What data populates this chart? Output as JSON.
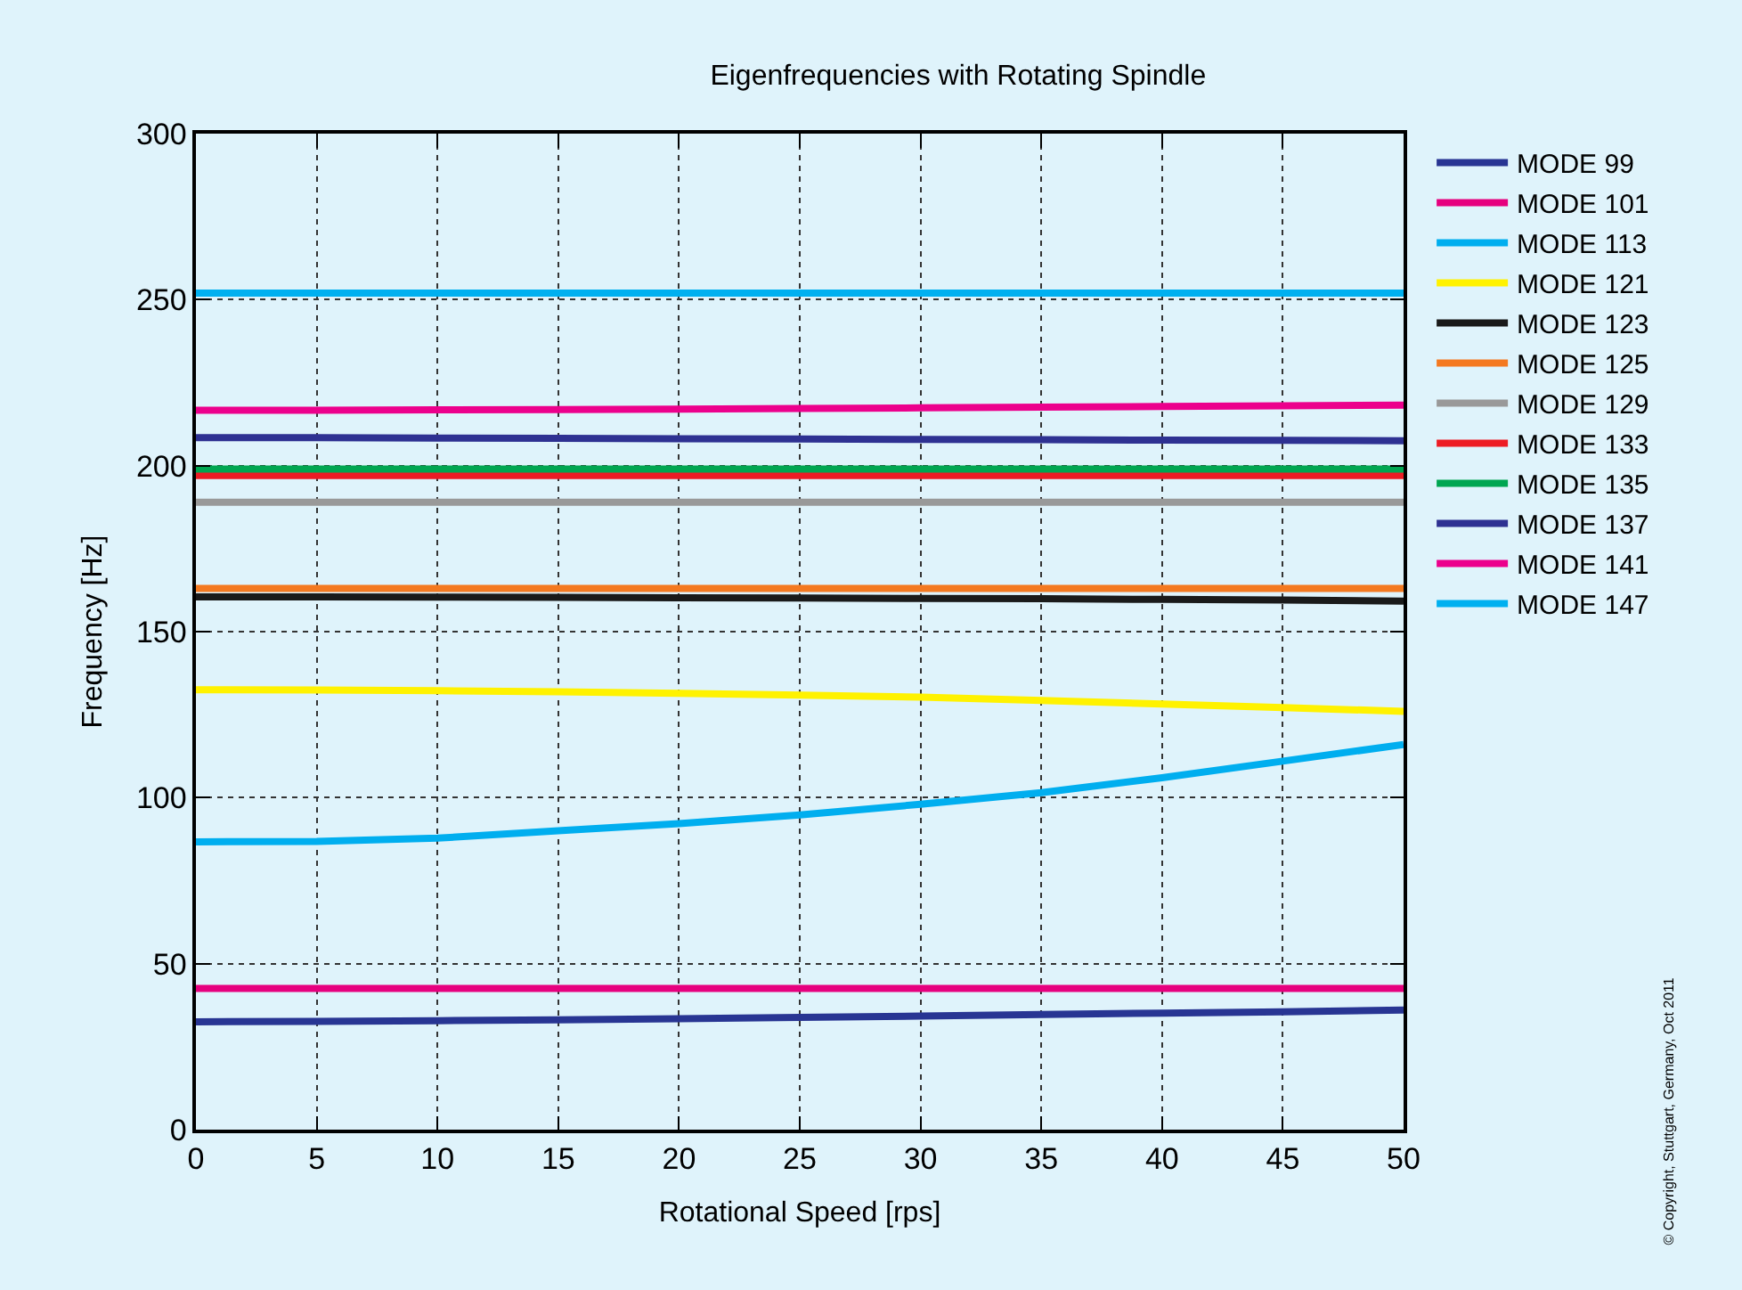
{
  "chart_data": {
    "type": "line",
    "title": "Eigenfrequencies with Rotating Spindle",
    "xlabel": "Rotational Speed [rps]",
    "ylabel": "Frequency [Hz]",
    "x": [
      0,
      5,
      10,
      15,
      20,
      25,
      30,
      35,
      40,
      45,
      50
    ],
    "series": [
      {
        "name": "MODE 99",
        "color": "#283593",
        "values": [
          32.5,
          32.6,
          32.8,
          33.1,
          33.4,
          33.8,
          34.2,
          34.7,
          35.1,
          35.5,
          36
        ]
      },
      {
        "name": "MODE 101",
        "color": "#e6007e",
        "values": [
          42.5,
          42.5,
          42.5,
          42.5,
          42.5,
          42.5,
          42.5,
          42.5,
          42.5,
          42.5,
          42.5
        ]
      },
      {
        "name": "MODE 113",
        "color": "#00aeef",
        "values": [
          86.7,
          86.8,
          87.8,
          90,
          92.2,
          94.8,
          98,
          101.5,
          106,
          111,
          116
        ]
      },
      {
        "name": "MODE 121",
        "color": "#fff200",
        "values": [
          132.5,
          132.4,
          132.2,
          131.9,
          131.4,
          130.9,
          130.3,
          129.3,
          128.2,
          127.1,
          126
        ]
      },
      {
        "name": "MODE 123",
        "color": "#1a1a1a",
        "values": [
          160.5,
          160.5,
          160.4,
          160.3,
          160.2,
          160.1,
          160,
          159.9,
          159.7,
          159.5,
          159.2
        ]
      },
      {
        "name": "MODE 125",
        "color": "#f47920",
        "values": [
          163,
          163,
          163,
          163,
          163,
          163,
          163,
          163,
          163,
          163,
          163
        ]
      },
      {
        "name": "MODE 129",
        "color": "#999999",
        "values": [
          189,
          189,
          189,
          189,
          189,
          189,
          189,
          189,
          189,
          189,
          189
        ]
      },
      {
        "name": "MODE 133",
        "color": "#ed1c24",
        "values": [
          197,
          197,
          197,
          197,
          197,
          197,
          197,
          197,
          197,
          197,
          197
        ]
      },
      {
        "name": "MODE 135",
        "color": "#00a651",
        "values": [
          199,
          199,
          199,
          199,
          199,
          199,
          199,
          199,
          199,
          199,
          199
        ]
      },
      {
        "name": "MODE 137",
        "color": "#2e3192",
        "values": [
          208.4,
          208.4,
          208.3,
          208.2,
          208.1,
          208,
          207.9,
          207.8,
          207.7,
          207.6,
          207.5
        ]
      },
      {
        "name": "MODE 141",
        "color": "#ec008c",
        "values": [
          216.7,
          216.7,
          216.8,
          216.9,
          217,
          217.2,
          217.4,
          217.6,
          217.8,
          218,
          218.2
        ]
      },
      {
        "name": "MODE 147",
        "color": "#00b0f0",
        "values": [
          252,
          252,
          252,
          252,
          252,
          252,
          252,
          252,
          252,
          252,
          252
        ]
      }
    ],
    "xlim": [
      0,
      50
    ],
    "xticks": [
      0,
      5,
      10,
      15,
      20,
      25,
      30,
      35,
      40,
      45,
      50
    ],
    "ylim": [
      0,
      300
    ],
    "yticks": [
      0,
      50,
      100,
      150,
      200,
      250,
      300
    ],
    "grid": true,
    "legend": "top right",
    "marker": "none",
    "line_style": "solid",
    "annotations": [
      "© Copyright, Stuttgart, Germany, Oct 2011"
    ]
  }
}
